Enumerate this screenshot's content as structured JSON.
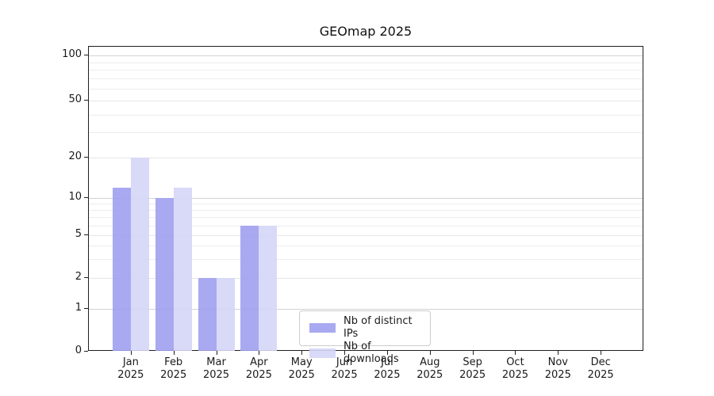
{
  "title": "GEOmap 2025",
  "legend": {
    "items": [
      {
        "label": "Nb of distinct IPs",
        "color": "#a0a0ef"
      },
      {
        "label": "Nb of downloads",
        "color": "#d5d5f7"
      }
    ]
  },
  "chart_data": {
    "type": "bar",
    "title": "GEOmap 2025",
    "categories": [
      "Jan",
      "Feb",
      "Mar",
      "Apr",
      "May",
      "Jun",
      "Jul",
      "Aug",
      "Sep",
      "Oct",
      "Nov",
      "Dec"
    ],
    "year": "2025",
    "series": [
      {
        "name": "Nb of distinct IPs",
        "color": "#a0a0ef",
        "values": [
          12,
          10,
          2,
          6,
          0,
          0,
          0,
          0,
          0,
          0,
          0,
          0
        ]
      },
      {
        "name": "Nb of downloads",
        "color": "#d5d5f7",
        "values": [
          20,
          12,
          2,
          6,
          0,
          0,
          0,
          0,
          0,
          0,
          0,
          0
        ]
      }
    ],
    "xlabel": "",
    "ylabel": "",
    "y_ticks": [
      0,
      1,
      2,
      5,
      10,
      20,
      50,
      100
    ],
    "y_minor_gridlines": [
      3,
      4,
      6,
      7,
      8,
      9,
      30,
      40,
      60,
      70,
      80,
      90
    ],
    "y_scale": "log-like (0,1,2,5,10,20,50,100)",
    "ylim": [
      0,
      100
    ],
    "grid": true,
    "legend_position": "inside-bottom-center",
    "axis_color": "#1f1f1f",
    "major_grid_color": "#d2d2d2",
    "minor_grid_color": "#ededed"
  }
}
